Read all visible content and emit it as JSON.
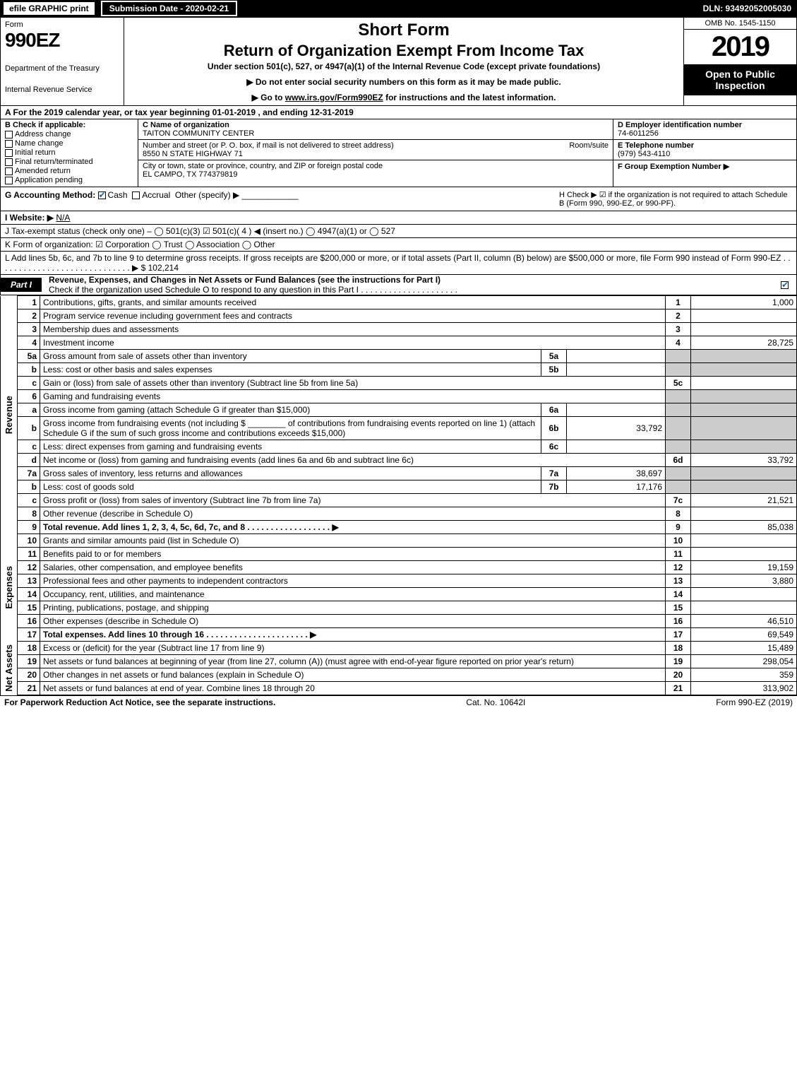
{
  "topbar": {
    "efile": "efile GRAPHIC print",
    "submission_label": "Submission Date - 2020-02-21",
    "dln": "DLN: 93492052005030"
  },
  "header": {
    "form_word": "Form",
    "form_no": "990EZ",
    "dept1": "Department of the Treasury",
    "dept2": "Internal Revenue Service",
    "title1": "Short Form",
    "title2": "Return of Organization Exempt From Income Tax",
    "title3": "Under section 501(c), 527, or 4947(a)(1) of the Internal Revenue Code (except private foundations)",
    "title4": "▶ Do not enter social security numbers on this form as it may be made public.",
    "title5_pre": "▶ Go to ",
    "title5_link": "www.irs.gov/Form990EZ",
    "title5_post": " for instructions and the latest information.",
    "omb": "OMB No. 1545-1150",
    "year": "2019",
    "inspection": "Open to Public Inspection"
  },
  "A": {
    "text_pre": "A For the 2019 calendar year, or tax year beginning ",
    "begin": "01-01-2019",
    "mid": " , and ending ",
    "end": "12-31-2019"
  },
  "B": {
    "hdr": "B Check if applicable:",
    "opts": [
      "Address change",
      "Name change",
      "Initial return",
      "Final return/terminated",
      "Amended return",
      "Application pending"
    ]
  },
  "C": {
    "name_lbl": "C Name of organization",
    "name": "TAITON COMMUNITY CENTER",
    "addr_lbl": "Number and street (or P. O. box, if mail is not delivered to street address)",
    "room_lbl": "Room/suite",
    "addr": "8550 N STATE HIGHWAY 71",
    "city_lbl": "City or town, state or province, country, and ZIP or foreign postal code",
    "city": "EL CAMPO, TX  774379819"
  },
  "D": {
    "lbl": "D Employer identification number",
    "val": "74-6011256"
  },
  "E": {
    "lbl": "E Telephone number",
    "val": "(979) 543-4110"
  },
  "F": {
    "lbl": "F Group Exemption Number  ▶",
    "val": ""
  },
  "G": {
    "lbl": "G Accounting Method:",
    "cash": "Cash",
    "accrual": "Accrual",
    "other": "Other (specify) ▶"
  },
  "H": {
    "text": "H  Check ▶ ☑ if the organization is not required to attach Schedule B (Form 990, 990-EZ, or 990-PF)."
  },
  "I": {
    "lbl": "I Website: ▶",
    "val": "N/A"
  },
  "J": {
    "text": "J Tax-exempt status (check only one) –  ◯ 501(c)(3)  ☑ 501(c)( 4 ) ◀ (insert no.)  ◯ 4947(a)(1) or  ◯ 527"
  },
  "K": {
    "text": "K Form of organization:   ☑ Corporation   ◯ Trust   ◯ Association   ◯ Other"
  },
  "L": {
    "text": "L Add lines 5b, 6c, and 7b to line 9 to determine gross receipts. If gross receipts are $200,000 or more, or if total assets (Part II, column (B) below) are $500,000 or more, file Form 990 instead of Form 990-EZ  . . . . . . . . . . . . . . . . . . . . . . . . . . . . .  ▶ $ ",
    "val": "102,214"
  },
  "partI": {
    "label": "Part I",
    "title": "Revenue, Expenses, and Changes in Net Assets or Fund Balances (see the instructions for Part I)",
    "sub": "Check if the organization used Schedule O to respond to any question in this Part I . . . . . . . . . . . . . . . . . . . . .",
    "checked": true
  },
  "sections": {
    "rev": "Revenue",
    "exp": "Expenses",
    "na": "Net Assets"
  },
  "lines": {
    "1": {
      "desc": "Contributions, gifts, grants, and similar amounts received",
      "rln": "1",
      "rval": "1,000"
    },
    "2": {
      "desc": "Program service revenue including government fees and contracts",
      "rln": "2",
      "rval": ""
    },
    "3": {
      "desc": "Membership dues and assessments",
      "rln": "3",
      "rval": ""
    },
    "4": {
      "desc": "Investment income",
      "rln": "4",
      "rval": "28,725"
    },
    "5a": {
      "desc": "Gross amount from sale of assets other than inventory",
      "subln": "5a",
      "subval": ""
    },
    "5b": {
      "desc": "Less: cost or other basis and sales expenses",
      "subln": "5b",
      "subval": ""
    },
    "5c": {
      "desc": "Gain or (loss) from sale of assets other than inventory (Subtract line 5b from line 5a)",
      "rln": "5c",
      "rval": ""
    },
    "6": {
      "desc": "Gaming and fundraising events"
    },
    "6a": {
      "desc": "Gross income from gaming (attach Schedule G if greater than $15,000)",
      "subln": "6a",
      "subval": ""
    },
    "6b": {
      "desc_pre": "Gross income from fundraising events (not including $ ",
      "desc_mid": " of contributions from fundraising events reported on line 1) (attach Schedule G if the sum of such gross income and contributions exceeds $15,000)",
      "subln": "6b",
      "subval": "33,792"
    },
    "6c": {
      "desc": "Less: direct expenses from gaming and fundraising events",
      "subln": "6c",
      "subval": ""
    },
    "6d": {
      "desc": "Net income or (loss) from gaming and fundraising events (add lines 6a and 6b and subtract line 6c)",
      "rln": "6d",
      "rval": "33,792"
    },
    "7a": {
      "desc": "Gross sales of inventory, less returns and allowances",
      "subln": "7a",
      "subval": "38,697"
    },
    "7b": {
      "desc": "Less: cost of goods sold",
      "subln": "7b",
      "subval": "17,176"
    },
    "7c": {
      "desc": "Gross profit or (loss) from sales of inventory (Subtract line 7b from line 7a)",
      "rln": "7c",
      "rval": "21,521"
    },
    "8": {
      "desc": "Other revenue (describe in Schedule O)",
      "rln": "8",
      "rval": ""
    },
    "9": {
      "desc": "Total revenue. Add lines 1, 2, 3, 4, 5c, 6d, 7c, and 8  . . . . . . . . . . . . . . . . . .  ▶",
      "rln": "9",
      "rval": "85,038",
      "bold": true
    },
    "10": {
      "desc": "Grants and similar amounts paid (list in Schedule O)",
      "rln": "10",
      "rval": ""
    },
    "11": {
      "desc": "Benefits paid to or for members",
      "rln": "11",
      "rval": ""
    },
    "12": {
      "desc": "Salaries, other compensation, and employee benefits",
      "rln": "12",
      "rval": "19,159"
    },
    "13": {
      "desc": "Professional fees and other payments to independent contractors",
      "rln": "13",
      "rval": "3,880"
    },
    "14": {
      "desc": "Occupancy, rent, utilities, and maintenance",
      "rln": "14",
      "rval": ""
    },
    "15": {
      "desc": "Printing, publications, postage, and shipping",
      "rln": "15",
      "rval": ""
    },
    "16": {
      "desc": "Other expenses (describe in Schedule O)",
      "rln": "16",
      "rval": "46,510"
    },
    "17": {
      "desc": "Total expenses. Add lines 10 through 16   . . . . . . . . . . . . . . . . . . . . . .  ▶",
      "rln": "17",
      "rval": "69,549",
      "bold": true
    },
    "18": {
      "desc": "Excess or (deficit) for the year (Subtract line 17 from line 9)",
      "rln": "18",
      "rval": "15,489"
    },
    "19": {
      "desc": "Net assets or fund balances at beginning of year (from line 27, column (A)) (must agree with end-of-year figure reported on prior year's return)",
      "rln": "19",
      "rval": "298,054"
    },
    "20": {
      "desc": "Other changes in net assets or fund balances (explain in Schedule O)",
      "rln": "20",
      "rval": "359"
    },
    "21": {
      "desc": "Net assets or fund balances at end of year. Combine lines 18 through 20",
      "rln": "21",
      "rval": "313,902"
    }
  },
  "footer": {
    "left": "For Paperwork Reduction Act Notice, see the separate instructions.",
    "mid": "Cat. No. 10642I",
    "right": "Form 990-EZ (2019)"
  },
  "colors": {
    "black": "#000000",
    "white": "#ffffff",
    "shade": "#cccccc",
    "check_blue": "#1a5fb4"
  }
}
